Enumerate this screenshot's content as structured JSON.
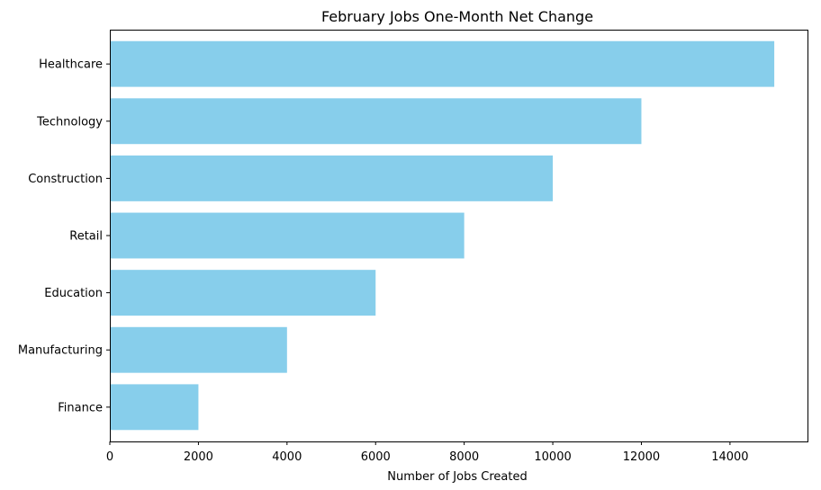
{
  "chart_data": {
    "type": "bar",
    "orientation": "horizontal",
    "title": "February Jobs One-Month Net Change",
    "xlabel": "Number of Jobs Created",
    "ylabel": "",
    "categories": [
      "Healthcare",
      "Technology",
      "Construction",
      "Retail",
      "Education",
      "Manufacturing",
      "Finance"
    ],
    "values": [
      15000,
      12000,
      10000,
      8000,
      6000,
      4000,
      2000
    ],
    "xlim": [
      0,
      15750
    ],
    "xticks": [
      0,
      2000,
      4000,
      6000,
      8000,
      10000,
      12000,
      14000
    ],
    "bar_color": "#87CEEB",
    "grid": false,
    "legend": "none"
  }
}
